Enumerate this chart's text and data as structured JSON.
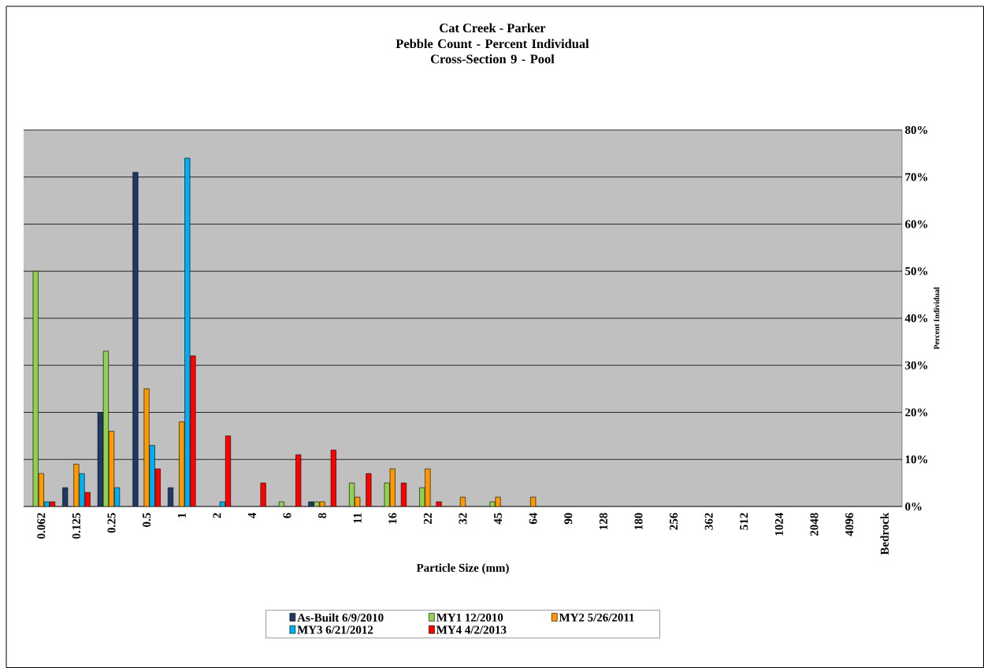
{
  "chart_data": {
    "type": "bar",
    "title": "Cat Creek - Parker",
    "subtitle": "Pebble Count - Percent Individual\nCross-Section 9 - Pool",
    "xlabel": "Particle Size (mm)",
    "ylabel": "Percent Individual",
    "categories": [
      "0.062",
      "0.125",
      "0.25",
      "0.5",
      "1",
      "2",
      "4",
      "6",
      "8",
      "11",
      "16",
      "22",
      "32",
      "45",
      "64",
      "90",
      "128",
      "180",
      "256",
      "362",
      "512",
      "1024",
      "2048",
      "4096",
      "Bedrock"
    ],
    "series": [
      {
        "name": "As-Built 6/9/2010",
        "color": "#1f3864",
        "values": [
          0,
          4,
          20,
          71,
          4,
          0,
          0,
          0,
          1,
          0,
          0,
          0,
          0,
          0,
          0,
          0,
          0,
          0,
          0,
          0,
          0,
          0,
          0,
          0,
          0
        ]
      },
      {
        "name": "MY1 12/2010",
        "color": "#92d050",
        "values": [
          50,
          0,
          33,
          0,
          0,
          0,
          0,
          1,
          1,
          5,
          5,
          4,
          0,
          1,
          0,
          0,
          0,
          0,
          0,
          0,
          0,
          0,
          0,
          0,
          0
        ]
      },
      {
        "name": "MY2 5/26/2011",
        "color": "#ff9900",
        "values": [
          7,
          9,
          16,
          25,
          18,
          0,
          0,
          0,
          1,
          2,
          8,
          8,
          2,
          2,
          2,
          0,
          0,
          0,
          0,
          0,
          0,
          0,
          0,
          0,
          0
        ]
      },
      {
        "name": "MY3 6/21/2012",
        "color": "#00b0f0",
        "values": [
          1,
          7,
          4,
          13,
          74,
          1,
          0,
          0,
          0,
          0,
          0,
          0,
          0,
          0,
          0,
          0,
          0,
          0,
          0,
          0,
          0,
          0,
          0,
          0,
          0
        ]
      },
      {
        "name": "MY4 4/2/2013",
        "color": "#ff0000",
        "values": [
          1,
          3,
          0,
          8,
          32,
          15,
          5,
          11,
          12,
          7,
          5,
          1,
          0,
          0,
          0,
          0,
          0,
          0,
          0,
          0,
          0,
          0,
          0,
          0,
          0
        ]
      }
    ],
    "ylim": [
      0,
      80
    ],
    "yticks": [
      {
        "value": 0,
        "label": "0%"
      },
      {
        "value": 10,
        "label": "10%"
      },
      {
        "value": 20,
        "label": "20%"
      },
      {
        "value": 30,
        "label": "30%"
      },
      {
        "value": 40,
        "label": "40%"
      },
      {
        "value": 50,
        "label": "50%"
      },
      {
        "value": 60,
        "label": "60%"
      },
      {
        "value": 70,
        "label": "70%"
      },
      {
        "value": 80,
        "label": "80%"
      }
    ],
    "grid": "y",
    "legend": "bottom"
  }
}
